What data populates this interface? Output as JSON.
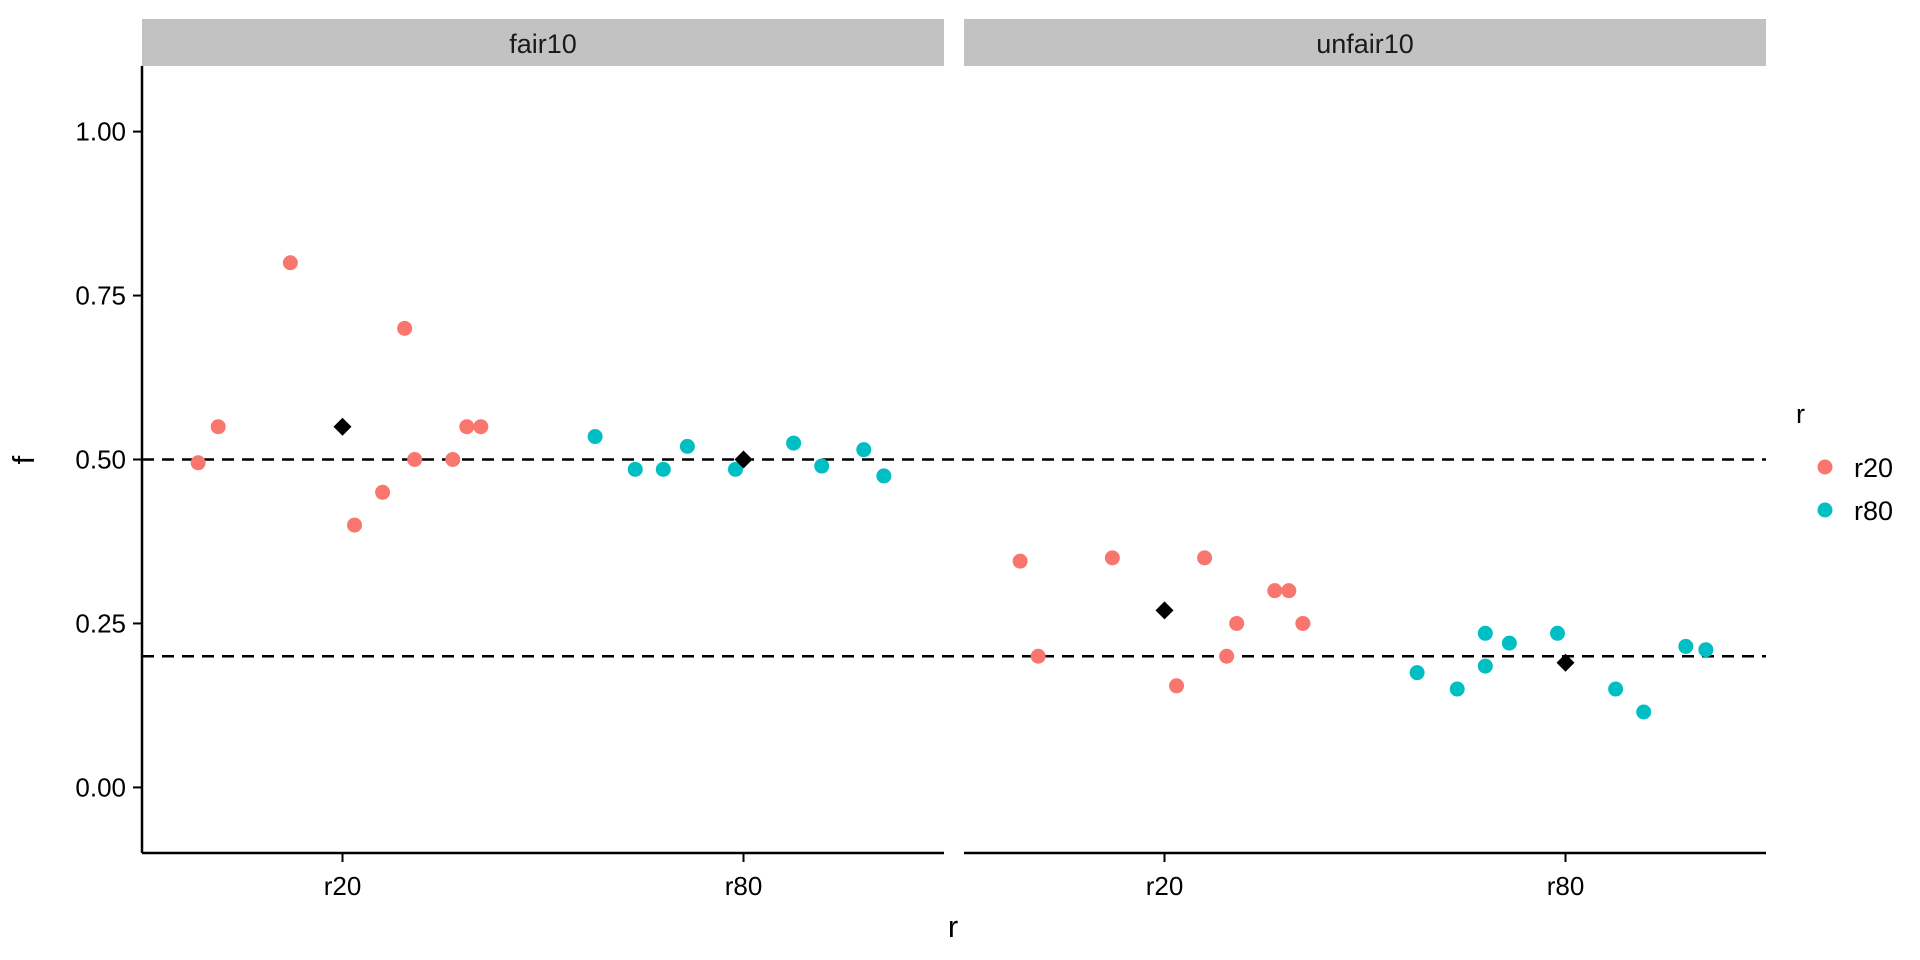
{
  "chart_data": {
    "type": "scatter",
    "xlabel": "r",
    "ylabel": "f",
    "ylim": [
      -0.1,
      1.1
    ],
    "yticks": [
      "0.00",
      "0.25",
      "0.50",
      "0.75",
      "1.00"
    ],
    "categories": [
      "r20",
      "r80"
    ],
    "reference_lines": [
      0.5,
      0.2
    ],
    "grid": false,
    "legend": {
      "title": "r",
      "placement": "right",
      "entries": [
        {
          "label": "r20",
          "color": "#F8766D"
        },
        {
          "label": "r80",
          "color": "#00BFC4"
        }
      ]
    },
    "mean_marker_color": "#000000",
    "panels": [
      {
        "label": "fair10",
        "means": [
          {
            "x": "r20",
            "y": 0.55
          },
          {
            "x": "r80",
            "y": 0.5
          }
        ],
        "points": [
          {
            "group": "r20",
            "x": -0.36,
            "y": 0.495
          },
          {
            "group": "r20",
            "x": -0.31,
            "y": 0.55
          },
          {
            "group": "r20",
            "x": -0.13,
            "y": 0.8
          },
          {
            "group": "r20",
            "x": 0.03,
            "y": 0.4
          },
          {
            "group": "r20",
            "x": 0.1,
            "y": 0.45
          },
          {
            "group": "r20",
            "x": 0.155,
            "y": 0.7
          },
          {
            "group": "r20",
            "x": 0.18,
            "y": 0.5
          },
          {
            "group": "r20",
            "x": 0.275,
            "y": 0.5
          },
          {
            "group": "r20",
            "x": 0.31,
            "y": 0.55
          },
          {
            "group": "r20",
            "x": 0.345,
            "y": 0.55
          },
          {
            "group": "r80",
            "x": -0.37,
            "y": 0.535
          },
          {
            "group": "r80",
            "x": -0.27,
            "y": 0.485
          },
          {
            "group": "r80",
            "x": -0.2,
            "y": 0.485
          },
          {
            "group": "r80",
            "x": -0.14,
            "y": 0.52
          },
          {
            "group": "r80",
            "x": -0.02,
            "y": 0.485
          },
          {
            "group": "r80",
            "x": 0.125,
            "y": 0.525
          },
          {
            "group": "r80",
            "x": 0.195,
            "y": 0.49
          },
          {
            "group": "r80",
            "x": 0.3,
            "y": 0.515
          },
          {
            "group": "r80",
            "x": 0.35,
            "y": 0.475
          }
        ]
      },
      {
        "label": "unfair10",
        "means": [
          {
            "x": "r20",
            "y": 0.27
          },
          {
            "x": "r80",
            "y": 0.19
          }
        ],
        "points": [
          {
            "group": "r20",
            "x": -0.36,
            "y": 0.345
          },
          {
            "group": "r20",
            "x": -0.315,
            "y": 0.2
          },
          {
            "group": "r20",
            "x": -0.13,
            "y": 0.35
          },
          {
            "group": "r20",
            "x": 0.03,
            "y": 0.155
          },
          {
            "group": "r20",
            "x": 0.1,
            "y": 0.35
          },
          {
            "group": "r20",
            "x": 0.155,
            "y": 0.2
          },
          {
            "group": "r20",
            "x": 0.18,
            "y": 0.25
          },
          {
            "group": "r20",
            "x": 0.275,
            "y": 0.3
          },
          {
            "group": "r20",
            "x": 0.31,
            "y": 0.3
          },
          {
            "group": "r20",
            "x": 0.345,
            "y": 0.25
          },
          {
            "group": "r80",
            "x": -0.37,
            "y": 0.175
          },
          {
            "group": "r80",
            "x": -0.27,
            "y": 0.15
          },
          {
            "group": "r80",
            "x": -0.2,
            "y": 0.185
          },
          {
            "group": "r80",
            "x": -0.2,
            "y": 0.235
          },
          {
            "group": "r80",
            "x": -0.14,
            "y": 0.22
          },
          {
            "group": "r80",
            "x": -0.02,
            "y": 0.235
          },
          {
            "group": "r80",
            "x": 0.125,
            "y": 0.15
          },
          {
            "group": "r80",
            "x": 0.195,
            "y": 0.115
          },
          {
            "group": "r80",
            "x": 0.3,
            "y": 0.215
          },
          {
            "group": "r80",
            "x": 0.35,
            "y": 0.21
          }
        ]
      }
    ]
  }
}
